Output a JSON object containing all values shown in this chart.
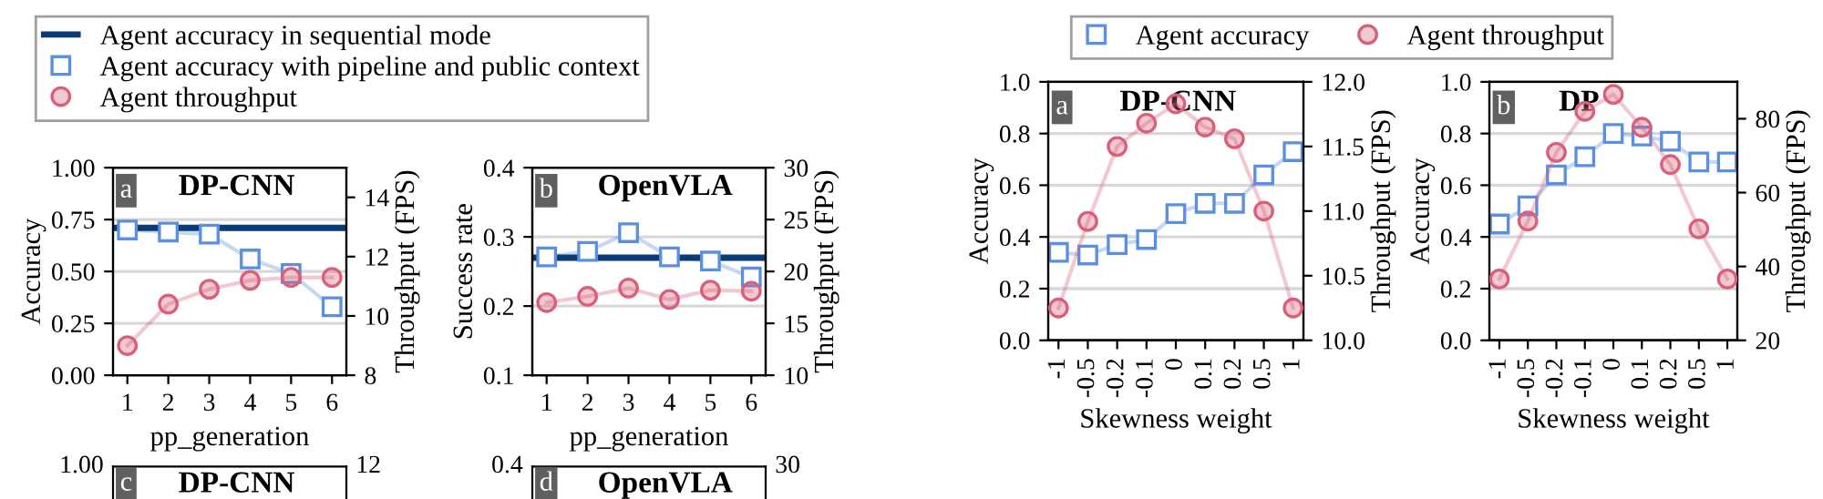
{
  "chart_data": [
    {
      "type": "line",
      "title": "DP-CNN",
      "annotations": [
        "a"
      ],
      "categories": [
        "1",
        "2",
        "3",
        "4",
        "5",
        "6"
      ],
      "xlabel": "pp_generation",
      "ylabel": "Accuracy",
      "y2label": "Throughput (FPS)",
      "ylim": [
        0,
        1
      ],
      "yticks": [
        {
          "value": 0,
          "label": "0.00"
        },
        {
          "value": 0.25,
          "label": "0.25"
        },
        {
          "value": 0.5,
          "label": "0.50"
        },
        {
          "value": 0.75,
          "label": "0.75"
        },
        {
          "value": 1,
          "label": "1.00"
        }
      ],
      "y2lim": [
        8,
        15
      ],
      "y2ticks": [
        8,
        10,
        12,
        14
      ],
      "grid": "y",
      "legend": "top",
      "ref_lines": [
        {
          "axis": "y",
          "value": 0.71,
          "label": "Agent accuracy in sequential mode",
          "color": "#0b3a75"
        }
      ],
      "series": [
        {
          "name": "Agent accuracy with pipeline and public context",
          "marker": "square",
          "axis": "y",
          "color": "#5b8fe0",
          "values": [
            0.7,
            0.69,
            0.68,
            0.56,
            0.49,
            0.33
          ]
        },
        {
          "name": "Agent throughput",
          "marker": "circle",
          "axis": "y2",
          "color": "#d9607a",
          "values": [
            9.0,
            10.4,
            10.9,
            11.2,
            11.3,
            11.3
          ]
        }
      ]
    },
    {
      "type": "line",
      "title": "OpenVLA",
      "annotations": [
        "b"
      ],
      "categories": [
        "1",
        "2",
        "3",
        "4",
        "5",
        "6"
      ],
      "xlabel": "pp_generation",
      "ylabel": "Success rate",
      "y2label": "Throughput (FPS)",
      "ylim": [
        0.1,
        0.4
      ],
      "yticks": [
        0.1,
        0.2,
        0.3,
        0.4
      ],
      "y2lim": [
        10,
        30
      ],
      "y2ticks": [
        10,
        15,
        20,
        25,
        30
      ],
      "grid": "y",
      "ref_lines": [
        {
          "axis": "y",
          "value": 0.27,
          "color": "#0b3a75"
        }
      ],
      "series": [
        {
          "marker": "square",
          "axis": "y",
          "color": "#5b8fe0",
          "values": [
            0.271,
            0.279,
            0.306,
            0.271,
            0.265,
            0.242
          ]
        },
        {
          "marker": "circle",
          "axis": "y2",
          "color": "#d9607a",
          "values": [
            17.0,
            17.6,
            18.4,
            17.3,
            18.2,
            18.1
          ]
        }
      ]
    },
    {
      "type": "other",
      "title": "DP-CNN",
      "annotations": [
        "c",
        "1.00",
        "12"
      ]
    },
    {
      "type": "other",
      "title": "OpenVLA",
      "annotations": [
        "d",
        "0.4",
        "30"
      ]
    },
    {
      "type": "line",
      "title": "DP-CNN",
      "annotations": [
        "a"
      ],
      "categories": [
        "-1",
        "-0.5",
        "-0.2",
        "-0.1",
        "0",
        "0.1",
        "0.2",
        "0.5",
        "1"
      ],
      "xlabel": "Skewness weight",
      "ylabel": "Accuracy",
      "y2label": "Throughput (FPS)",
      "ylim": [
        0,
        1
      ],
      "yticks": [
        {
          "value": 0,
          "label": "0.0"
        },
        0.2,
        0.4,
        0.6,
        0.8,
        {
          "value": 1,
          "label": "1.0"
        }
      ],
      "y2lim": [
        10,
        12
      ],
      "y2ticks": [
        {
          "value": 10,
          "label": "10.0"
        },
        10.5,
        {
          "value": 11,
          "label": "11.0"
        },
        11.5,
        {
          "value": 12,
          "label": "12.0"
        }
      ],
      "grid": "y",
      "legend": "top",
      "series": [
        {
          "name": "Agent accuracy",
          "marker": "square",
          "axis": "y",
          "color": "#5b8fe0",
          "values": [
            0.34,
            0.33,
            0.37,
            0.39,
            0.49,
            0.53,
            0.53,
            0.64,
            0.73
          ]
        },
        {
          "name": "Agent throughput",
          "marker": "circle",
          "axis": "y2",
          "color": "#d9607a",
          "values": [
            10.25,
            10.92,
            11.5,
            11.68,
            11.83,
            11.65,
            11.56,
            11.0,
            10.25
          ]
        }
      ]
    },
    {
      "type": "line",
      "title": "DP",
      "annotations": [
        "b"
      ],
      "categories": [
        "-1",
        "-0.5",
        "-0.2",
        "-0.1",
        "0",
        "0.1",
        "0.2",
        "0.5",
        "1"
      ],
      "xlabel": "Skewness weight",
      "ylabel": "Accuracy",
      "y2label": "Throughput (FPS)",
      "ylim": [
        0,
        1
      ],
      "yticks": [
        {
          "value": 0,
          "label": "0.0"
        },
        0.2,
        0.4,
        0.6,
        0.8,
        {
          "value": 1,
          "label": "1.0"
        }
      ],
      "y2lim": [
        20,
        90
      ],
      "y2ticks": [
        20,
        40,
        60,
        80
      ],
      "grid": "y",
      "series": [
        {
          "marker": "square",
          "axis": "y",
          "color": "#5b8fe0",
          "values": [
            0.45,
            0.52,
            0.64,
            0.71,
            0.8,
            0.79,
            0.77,
            0.69,
            0.69
          ]
        },
        {
          "marker": "circle",
          "axis": "y2",
          "color": "#d9607a",
          "values": [
            36.6,
            52.3,
            70.9,
            82.0,
            86.6,
            77.7,
            67.6,
            50.2,
            36.6
          ]
        }
      ]
    }
  ]
}
